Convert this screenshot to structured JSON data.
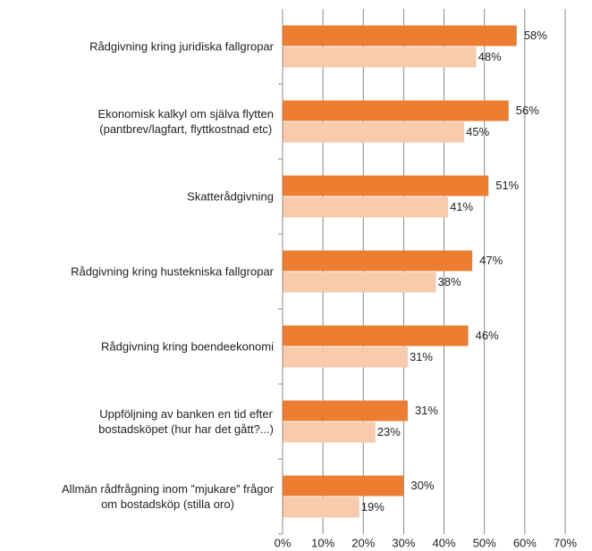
{
  "chart_data": {
    "type": "barh",
    "categories": [
      "Rådgivning kring juridiska fallgropar",
      "Ekonomisk kalkyl om själva flytten\n(pantbrev/lagfart, flyttkostnad etc)",
      "Skatterådgivning",
      "Rådgivning kring hustekniska fallgropar",
      "Rådgivning kring boendeekonomi",
      "Uppföljning av banken en tid efter\nbostadsköpet (hur har det gått?...)",
      "Allmän  rådfrågning inom ”mjukare” frågor\nom bostadsköp  (stilla oro)"
    ],
    "series": [
      {
        "color": "#ed7d31",
        "values": [
          58,
          56,
          51,
          47,
          46,
          31,
          30
        ],
        "value_labels": [
          "58%",
          "56%",
          "51%",
          "47%",
          "46%",
          "31%",
          "30%"
        ]
      },
      {
        "color": "#f8cbad",
        "values": [
          48,
          45,
          41,
          38,
          31,
          23,
          19
        ],
        "value_labels": [
          "48%",
          "45%",
          "41%",
          "38%",
          "31%",
          "23%",
          "19%"
        ]
      }
    ],
    "xlim": [
      0,
      70
    ],
    "xticks": [
      {
        "value": 0,
        "label": "0%"
      },
      {
        "value": 10,
        "label": "10%"
      },
      {
        "value": 20,
        "label": "20%"
      },
      {
        "value": 30,
        "label": "30%"
      },
      {
        "value": 40,
        "label": "40%"
      },
      {
        "value": 50,
        "label": "50%"
      },
      {
        "value": 60,
        "label": "60%"
      },
      {
        "value": 70,
        "label": "70%"
      }
    ],
    "grid": true
  }
}
